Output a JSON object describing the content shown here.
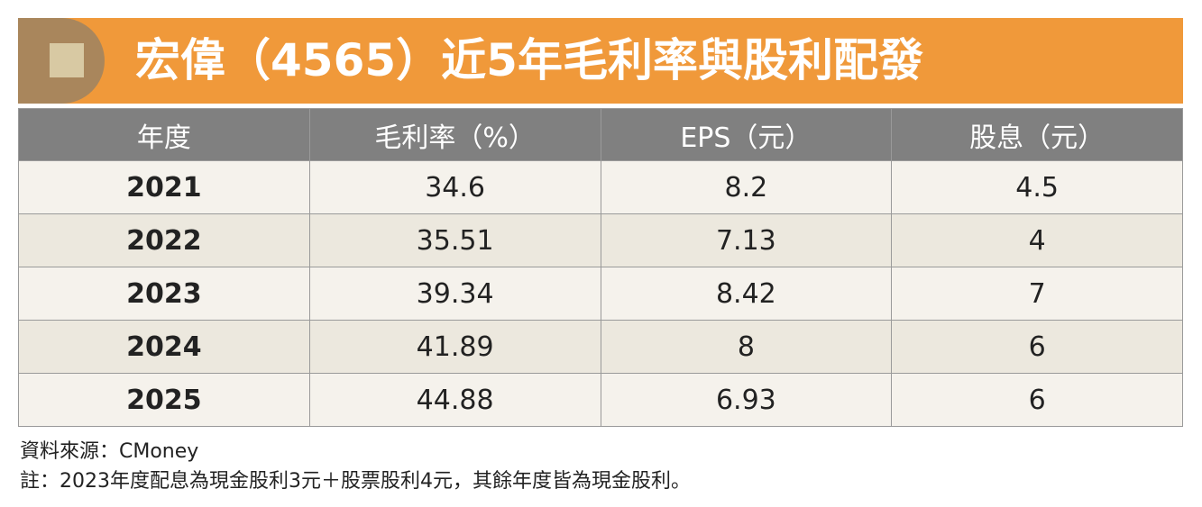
{
  "header": {
    "title": "宏偉（4565）近5年毛利率與股利配發"
  },
  "table": {
    "columns": [
      "年度",
      "毛利率（%）",
      "EPS（元）",
      "股息（元）"
    ],
    "rows": [
      [
        "2021",
        "34.6",
        "8.2",
        "4.5"
      ],
      [
        "2022",
        "35.51",
        "7.13",
        "4"
      ],
      [
        "2023",
        "39.34",
        "8.42",
        "7"
      ],
      [
        "2024",
        "41.89",
        "8",
        "6"
      ],
      [
        "2025",
        "44.88",
        "6.93",
        "6"
      ]
    ]
  },
  "footer": {
    "source": "資料來源：CMoney",
    "note": "註：2023年度配息為現金股利3元＋股票股利4元，其餘年度皆為現金股利。"
  }
}
